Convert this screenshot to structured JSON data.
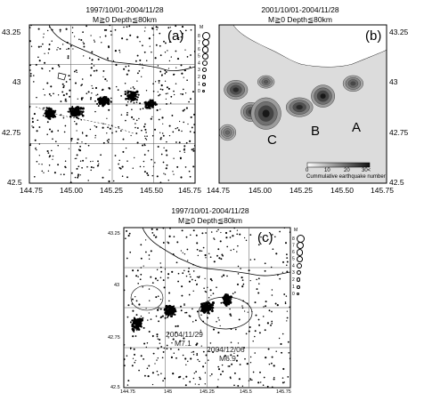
{
  "panels": {
    "a": {
      "title_line1": "1997/10/01-2004/11/28",
      "title_line2": "M≧0 Depth≦80km",
      "label": "(a)",
      "x_ticks": [
        "144.75",
        "145.00",
        "145.25",
        "145.50",
        "145.75"
      ],
      "y_ticks": [
        "43.25",
        "43",
        "42.75",
        "42.5"
      ]
    },
    "b": {
      "title_line1": "2001/10/01-2004/11/28",
      "title_line2": "M≧0 Depth≦80km",
      "label": "(b)",
      "x_ticks": [
        "144.75",
        "145.00",
        "145.25",
        "145.50",
        "145.75"
      ],
      "y_ticks": [
        "43.25",
        "43",
        "42.75",
        "42.5"
      ],
      "cluster_labels": [
        "C",
        "B",
        "A"
      ],
      "colorbar": {
        "ticks": [
          "0",
          "10",
          "20",
          "30<"
        ],
        "label": "Cummulative earthquake number"
      }
    },
    "c": {
      "title_line1": "1997/10/01-2004/11/28",
      "title_line2": "M≧0 Depth≦80km",
      "label": "(c)",
      "x_ticks": [
        "144.75",
        "145",
        "145.25",
        "145.5",
        "145.75"
      ],
      "y_ticks": [
        "43.25",
        "43",
        "42.75",
        "42.5"
      ],
      "annotations": [
        {
          "date": "2004/11/29",
          "mag": "M7.1"
        },
        {
          "date": "2004/12/06",
          "mag": "M6.9"
        }
      ]
    }
  },
  "magnitude_legend": {
    "heading": "M",
    "values": [
      "8",
      "7",
      "6",
      "5",
      "4",
      "3",
      "2",
      "1",
      "0"
    ]
  },
  "colors": {
    "point": "#000000",
    "grid": "#555555",
    "contour": "#444444",
    "background": "#ffffff"
  }
}
